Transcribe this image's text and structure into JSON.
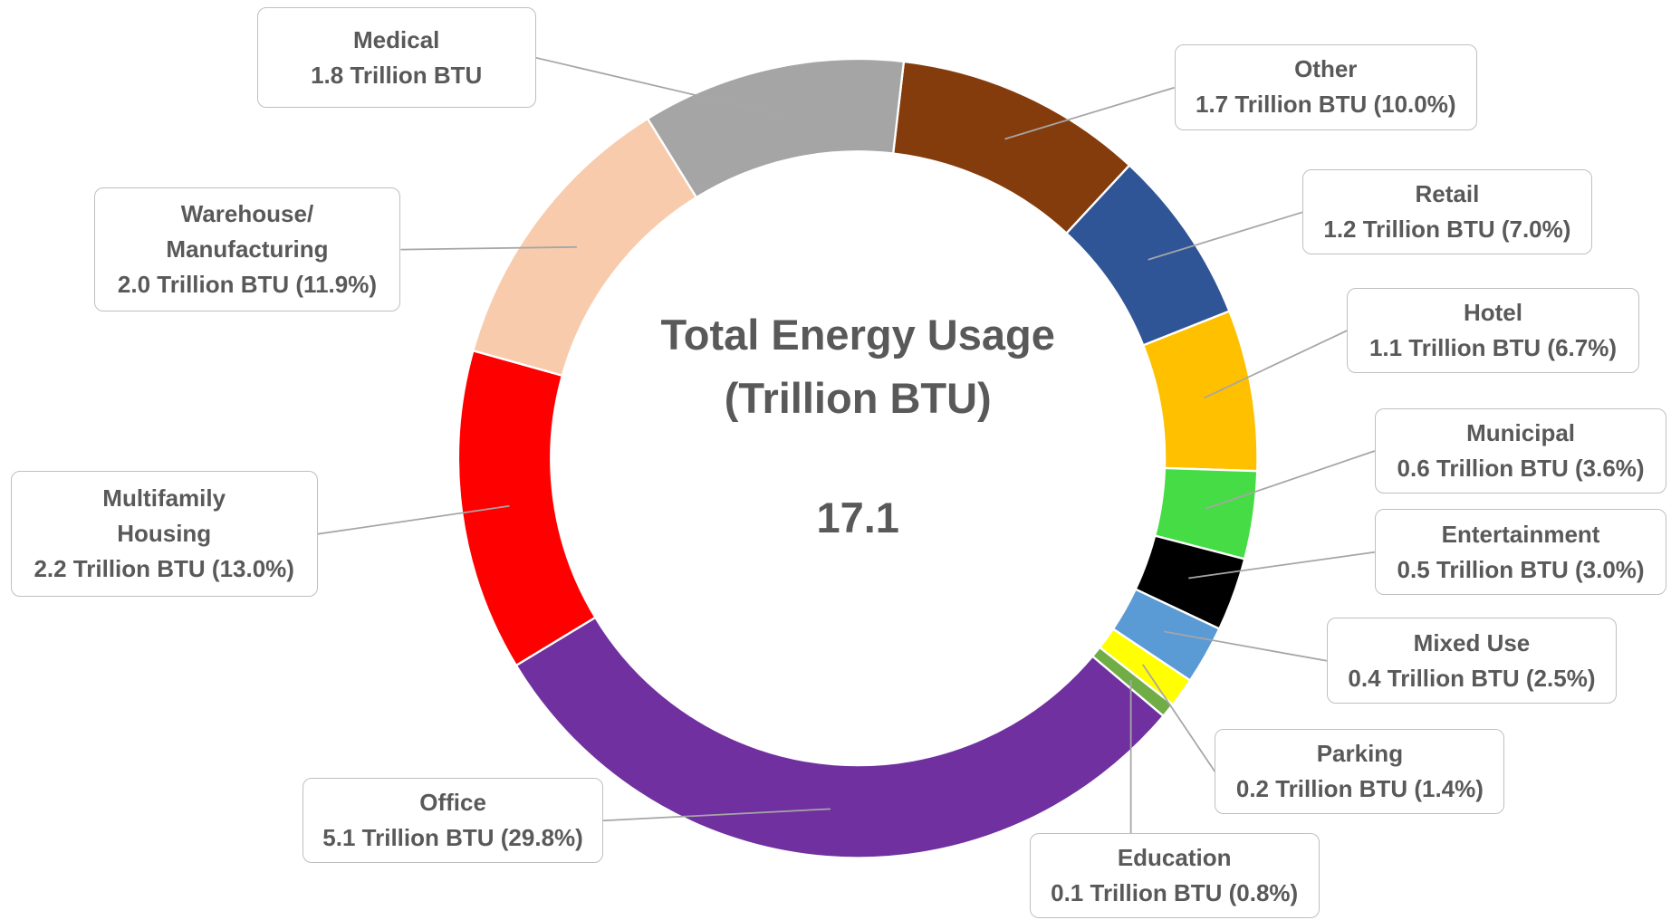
{
  "chart_data": {
    "type": "donut",
    "title": "Total Energy Usage (Trillion BTU)",
    "total": 17.1,
    "categories": [
      "Other",
      "Retail",
      "Hotel",
      "Municipal",
      "Entertainment",
      "Mixed Use",
      "Parking",
      "Education",
      "Office",
      "Multifamily Housing",
      "Warehouse/ Manufacturing",
      "Medical"
    ],
    "values": [
      1.7,
      1.2,
      1.1,
      0.6,
      0.5,
      0.4,
      0.2,
      0.1,
      5.1,
      2.2,
      2.0,
      1.8
    ],
    "value_labels": [
      "1.7 Trillion BTU (10.0%)",
      "1.2 Trillion BTU (7.0%)",
      "1.1 Trillion BTU (6.7%)",
      "0.6 Trillion BTU (3.6%)",
      "0.5 Trillion BTU (3.0%)",
      "0.4 Trillion BTU (2.5%)",
      "0.2 Trillion BTU (1.4%)",
      "0.1 Trillion BTU (0.8%)",
      "5.1 Trillion BTU (29.8%)",
      "2.2 Trillion BTU (13.0%)",
      "2.0 Trillion BTU (11.9%)",
      "1.8 Trillion BTU"
    ],
    "colors": [
      "#843c0c",
      "#2f5597",
      "#ffc000",
      "#45dc45",
      "#000000",
      "#5b9bd5",
      "#ffff00",
      "#70ad47",
      "#7030a0",
      "#ff0000",
      "#f8cbad",
      "#a5a5a5"
    ]
  }
}
